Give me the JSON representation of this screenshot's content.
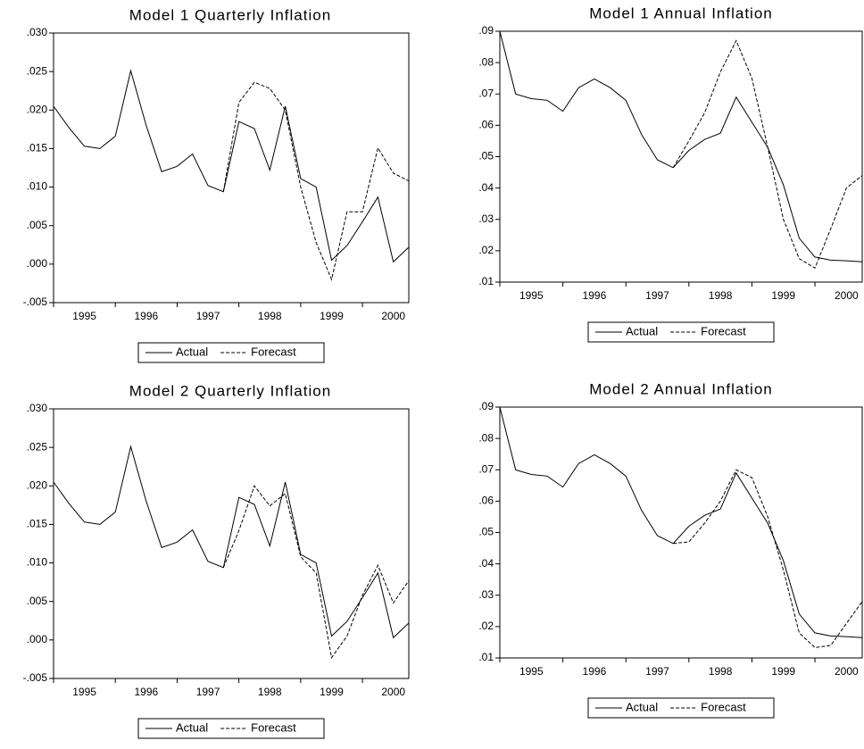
{
  "chart_data": [
    {
      "type": "line",
      "title": "Model 1 Quarterly Inflation",
      "categories": [
        null,
        null,
        "1995",
        null,
        null,
        null,
        "1996",
        null,
        null,
        null,
        "1997",
        null,
        null,
        null,
        "1998",
        null,
        null,
        null,
        "1999",
        null,
        null,
        null,
        "2000",
        null
      ],
      "series": [
        {
          "name": "Actual",
          "color": "#000000",
          "line_style": "solid",
          "values": [
            0.0205,
            0.0177,
            0.0153,
            0.015,
            0.0166,
            0.0251,
            0.018,
            0.012,
            0.0127,
            0.0143,
            0.0102,
            0.0094,
            0.0185,
            0.0176,
            0.0122,
            0.0205,
            0.0111,
            0.01,
            0.0005,
            0.0024,
            0.0055,
            0.0087,
            0.0003,
            0.0022
          ]
        },
        {
          "name": "Forecast",
          "color": "#000000",
          "line_style": "dashed",
          "values": [
            null,
            null,
            null,
            null,
            null,
            null,
            null,
            null,
            null,
            null,
            null,
            0.0094,
            0.021,
            0.0236,
            0.0228,
            0.02,
            0.01,
            0.0028,
            -0.002,
            0.0068,
            0.0068,
            0.0151,
            0.0118,
            0.0108
          ]
        }
      ],
      "ylim": [
        -0.005,
        0.03
      ],
      "yticks": [
        {
          "value": -0.005,
          "label": "-.005"
        },
        {
          "value": 0,
          "label": ".000"
        },
        {
          "value": 0.005,
          "label": ".005"
        },
        {
          "value": 0.01,
          "label": ".010"
        },
        {
          "value": 0.015,
          "label": ".015"
        },
        {
          "value": 0.02,
          "label": ".020"
        },
        {
          "value": 0.025,
          "label": ".025"
        },
        {
          "value": 0.03,
          "label": ".030"
        }
      ],
      "grid": false,
      "legend": "bottom"
    },
    {
      "type": "line",
      "title": "Model 1 Annual Inflation",
      "categories": [
        null,
        null,
        "1995",
        null,
        null,
        null,
        "1996",
        null,
        null,
        null,
        "1997",
        null,
        null,
        null,
        "1998",
        null,
        null,
        null,
        "1999",
        null,
        null,
        null,
        "2000",
        null
      ],
      "series": [
        {
          "name": "Actual",
          "color": "#000000",
          "line_style": "solid",
          "values": [
            0.09,
            0.07,
            0.0685,
            0.068,
            0.0645,
            0.072,
            0.0748,
            0.072,
            0.068,
            0.057,
            0.049,
            0.0465,
            0.052,
            0.0555,
            0.0575,
            0.069,
            0.061,
            0.053,
            0.041,
            0.024,
            0.018,
            0.017,
            0.0168,
            0.0165
          ]
        },
        {
          "name": "Forecast",
          "color": "#000000",
          "line_style": "dashed",
          "values": [
            null,
            null,
            null,
            null,
            null,
            null,
            null,
            null,
            null,
            null,
            null,
            0.0465,
            0.055,
            0.064,
            0.077,
            0.087,
            0.075,
            0.053,
            0.03,
            0.0175,
            0.0145,
            0.027,
            0.04,
            0.044
          ]
        }
      ],
      "ylim": [
        0.01,
        0.09
      ],
      "yticks": [
        {
          "value": 0.01,
          "label": ".01"
        },
        {
          "value": 0.02,
          "label": ".02"
        },
        {
          "value": 0.03,
          "label": ".03"
        },
        {
          "value": 0.04,
          "label": ".04"
        },
        {
          "value": 0.05,
          "label": ".05"
        },
        {
          "value": 0.06,
          "label": ".06"
        },
        {
          "value": 0.07,
          "label": ".07"
        },
        {
          "value": 0.08,
          "label": ".08"
        },
        {
          "value": 0.09,
          "label": ".09"
        }
      ],
      "grid": false,
      "legend": "bottom"
    },
    {
      "type": "line",
      "title": "Model 2 Quarterly Inflation",
      "categories": [
        null,
        null,
        "1995",
        null,
        null,
        null,
        "1996",
        null,
        null,
        null,
        "1997",
        null,
        null,
        null,
        "1998",
        null,
        null,
        null,
        "1999",
        null,
        null,
        null,
        "2000",
        null
      ],
      "series": [
        {
          "name": "Actual",
          "color": "#000000",
          "line_style": "solid",
          "values": [
            0.0205,
            0.0177,
            0.0153,
            0.015,
            0.0166,
            0.0251,
            0.018,
            0.012,
            0.0127,
            0.0143,
            0.0102,
            0.0094,
            0.0185,
            0.0176,
            0.0122,
            0.0205,
            0.0111,
            0.01,
            0.0005,
            0.0024,
            0.0055,
            0.0087,
            0.0003,
            0.0022
          ]
        },
        {
          "name": "Forecast",
          "color": "#000000",
          "line_style": "dashed",
          "values": [
            null,
            null,
            null,
            null,
            null,
            null,
            null,
            null,
            null,
            null,
            null,
            0.0094,
            0.0142,
            0.02,
            0.0174,
            0.019,
            0.0108,
            0.0087,
            -0.0023,
            0.0005,
            0.0058,
            0.0097,
            0.0048,
            0.0077
          ]
        }
      ],
      "ylim": [
        -0.005,
        0.03
      ],
      "yticks": [
        {
          "value": -0.005,
          "label": "-.005"
        },
        {
          "value": 0,
          "label": ".000"
        },
        {
          "value": 0.005,
          "label": ".005"
        },
        {
          "value": 0.01,
          "label": ".010"
        },
        {
          "value": 0.015,
          "label": ".015"
        },
        {
          "value": 0.02,
          "label": ".020"
        },
        {
          "value": 0.025,
          "label": ".025"
        },
        {
          "value": 0.03,
          "label": ".030"
        }
      ],
      "grid": false,
      "legend": "bottom"
    },
    {
      "type": "line",
      "title": "Model 2  Annual Inflation",
      "categories": [
        null,
        null,
        "1995",
        null,
        null,
        null,
        "1996",
        null,
        null,
        null,
        "1997",
        null,
        null,
        null,
        "1998",
        null,
        null,
        null,
        "1999",
        null,
        null,
        null,
        "2000",
        null
      ],
      "series": [
        {
          "name": "Actual",
          "color": "#000000",
          "line_style": "solid",
          "values": [
            0.09,
            0.07,
            0.0685,
            0.068,
            0.0645,
            0.072,
            0.0748,
            0.072,
            0.068,
            0.057,
            0.049,
            0.0465,
            0.052,
            0.0555,
            0.0575,
            0.069,
            0.061,
            0.053,
            0.041,
            0.024,
            0.018,
            0.017,
            0.0168,
            0.0165
          ]
        },
        {
          "name": "Forecast",
          "color": "#000000",
          "line_style": "dashed",
          "values": [
            null,
            null,
            null,
            null,
            null,
            null,
            null,
            null,
            null,
            null,
            null,
            0.0465,
            0.047,
            0.053,
            0.06,
            0.07,
            0.0675,
            0.055,
            0.038,
            0.018,
            0.0133,
            0.014,
            0.021,
            0.028
          ]
        }
      ],
      "ylim": [
        0.01,
        0.09
      ],
      "yticks": [
        {
          "value": 0.01,
          "label": ".01"
        },
        {
          "value": 0.02,
          "label": ".02"
        },
        {
          "value": 0.03,
          "label": ".03"
        },
        {
          "value": 0.04,
          "label": ".04"
        },
        {
          "value": 0.05,
          "label": ".05"
        },
        {
          "value": 0.06,
          "label": ".06"
        },
        {
          "value": 0.07,
          "label": ".07"
        },
        {
          "value": 0.08,
          "label": ".08"
        },
        {
          "value": 0.09,
          "label": ".09"
        }
      ],
      "grid": false,
      "legend": "bottom"
    }
  ]
}
